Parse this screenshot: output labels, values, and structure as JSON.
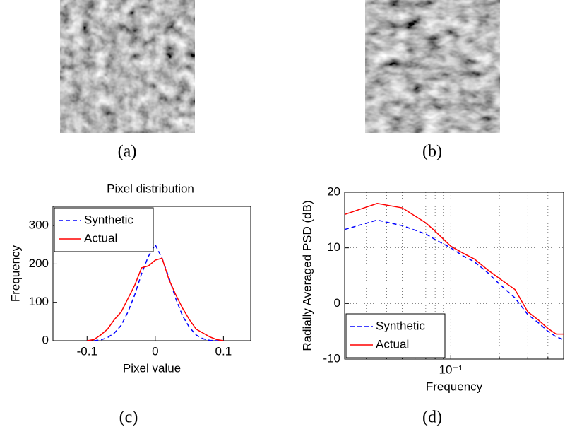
{
  "captions": [
    "(a)",
    "(b)",
    "(c)",
    "(d)"
  ],
  "chart_data": [
    {
      "type": "line",
      "title": "Pixel distribution",
      "x_label": "Pixel value",
      "y_label": "Frequency",
      "x": [
        -0.1,
        -0.09,
        -0.08,
        -0.07,
        -0.06,
        -0.05,
        -0.04,
        -0.03,
        -0.02,
        -0.01,
        0,
        0.01,
        0.02,
        0.03,
        0.04,
        0.05,
        0.06,
        0.07,
        0.08,
        0.09,
        0.1
      ],
      "series": [
        {
          "name": "Synthetic",
          "color": "#0000ff",
          "linestyle": "--",
          "values": [
            0,
            0,
            2,
            8,
            20,
            40,
            75,
            120,
            175,
            220,
            250,
            215,
            165,
            110,
            65,
            35,
            15,
            5,
            1,
            0,
            0
          ]
        },
        {
          "name": "Actual",
          "color": "#ff0000",
          "linestyle": "-",
          "values": [
            0,
            3,
            15,
            30,
            55,
            75,
            110,
            145,
            190,
            195,
            210,
            215,
            160,
            120,
            85,
            55,
            30,
            20,
            10,
            3,
            0
          ]
        }
      ],
      "xlim": [
        -0.15,
        0.14
      ],
      "xticks": [
        -0.1,
        0,
        0.1
      ],
      "ylim": [
        0,
        350
      ],
      "yticks": [
        0,
        100,
        200,
        300
      ],
      "legend": "upper left",
      "grid": false
    },
    {
      "type": "line",
      "x_label": "Frequency",
      "y_label": "Radially Averaged PSD (dB)",
      "x": [
        0.022,
        0.035,
        0.05,
        0.07,
        0.08,
        0.1,
        0.12,
        0.14,
        0.17,
        0.2,
        0.25,
        0.3,
        0.35,
        0.4,
        0.45,
        0.5
      ],
      "series": [
        {
          "name": "Synthetic",
          "color": "#0000ff",
          "linestyle": "--",
          "values": [
            13.3,
            15,
            14,
            12.5,
            11.5,
            10,
            8.5,
            7.5,
            5.5,
            3.5,
            1,
            -2,
            -3.5,
            -5,
            -6,
            -6.5
          ]
        },
        {
          "name": "Actual",
          "color": "#ff0000",
          "linestyle": "-",
          "values": [
            16,
            18,
            17.2,
            14.5,
            13,
            10.3,
            9,
            8,
            6,
            4.5,
            2.5,
            -1.5,
            -3,
            -4.5,
            -5.5,
            -5.5
          ]
        }
      ],
      "xlim": [
        0.022,
        0.5
      ],
      "xscale": "log",
      "xticks": [
        {
          "value": 0.1,
          "label": "10⁻¹"
        }
      ],
      "xminor_ticks": [
        0.03,
        0.04,
        0.05,
        0.06,
        0.07,
        0.08,
        0.09,
        0.2,
        0.3,
        0.4,
        0.5
      ],
      "ylim": [
        -10,
        20
      ],
      "yticks": [
        -10,
        0,
        10,
        20
      ],
      "legend": "lower left",
      "grid": true
    }
  ]
}
